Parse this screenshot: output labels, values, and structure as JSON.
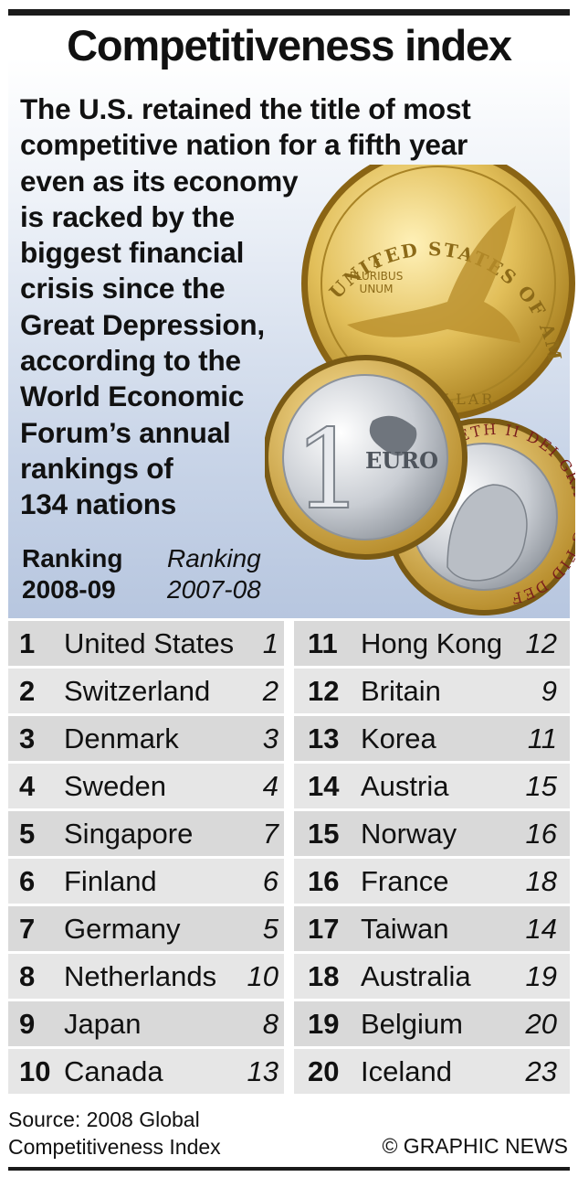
{
  "title": "Competitiveness index",
  "intro_lines": [
    "The U.S. retained the title of most",
    "competitive nation for a fifth year",
    "even as its economy",
    "is racked by the",
    "biggest financial",
    "crisis since the",
    "Great Depression,",
    "according to the",
    "World Economic",
    "Forum’s annual",
    "rankings of",
    "134 nations"
  ],
  "headers": {
    "current_line1": "Ranking",
    "current_line2": "2008-09",
    "previous_line1": "Ranking",
    "previous_line2": "2007-08"
  },
  "coins": {
    "dollar_top": "UNITED STATES OF AMERICA",
    "dollar_motto_1": "E",
    "dollar_motto_2": "PLURIBUS",
    "dollar_motto_3": "UNUM",
    "dollar_bottom": "ONE DOLLAR",
    "euro_digit": "1",
    "euro_word": "EURO",
    "pound_text": "ELIZABETH II DEI GRA REG FID DEF"
  },
  "rankings": [
    {
      "rank": "1",
      "country": "United States",
      "prev": "1"
    },
    {
      "rank": "2",
      "country": "Switzerland",
      "prev": "2"
    },
    {
      "rank": "3",
      "country": "Denmark",
      "prev": "3"
    },
    {
      "rank": "4",
      "country": "Sweden",
      "prev": "4"
    },
    {
      "rank": "5",
      "country": "Singapore",
      "prev": "7"
    },
    {
      "rank": "6",
      "country": "Finland",
      "prev": "6"
    },
    {
      "rank": "7",
      "country": "Germany",
      "prev": "5"
    },
    {
      "rank": "8",
      "country": "Netherlands",
      "prev": "10"
    },
    {
      "rank": "9",
      "country": "Japan",
      "prev": "8"
    },
    {
      "rank": "10",
      "country": "Canada",
      "prev": "13"
    },
    {
      "rank": "11",
      "country": "Hong Kong",
      "prev": "12"
    },
    {
      "rank": "12",
      "country": "Britain",
      "prev": "9"
    },
    {
      "rank": "13",
      "country": "Korea",
      "prev": "11"
    },
    {
      "rank": "14",
      "country": "Austria",
      "prev": "15"
    },
    {
      "rank": "15",
      "country": "Norway",
      "prev": "16"
    },
    {
      "rank": "16",
      "country": "France",
      "prev": "18"
    },
    {
      "rank": "17",
      "country": "Taiwan",
      "prev": "14"
    },
    {
      "rank": "18",
      "country": "Australia",
      "prev": "19"
    },
    {
      "rank": "19",
      "country": "Belgium",
      "prev": "20"
    },
    {
      "rank": "20",
      "country": "Iceland",
      "prev": "23"
    }
  ],
  "source_line1": "Source: 2008 Global",
  "source_line2": "Competitiveness Index",
  "credit": "© GRAPHIC NEWS",
  "colors": {
    "row_light": "#e6e6e6",
    "row_dark": "#d9d9d9",
    "backdrop_blue": "#b7c6df",
    "gold": "#d8b24a",
    "silver": "#c8ccd2"
  }
}
